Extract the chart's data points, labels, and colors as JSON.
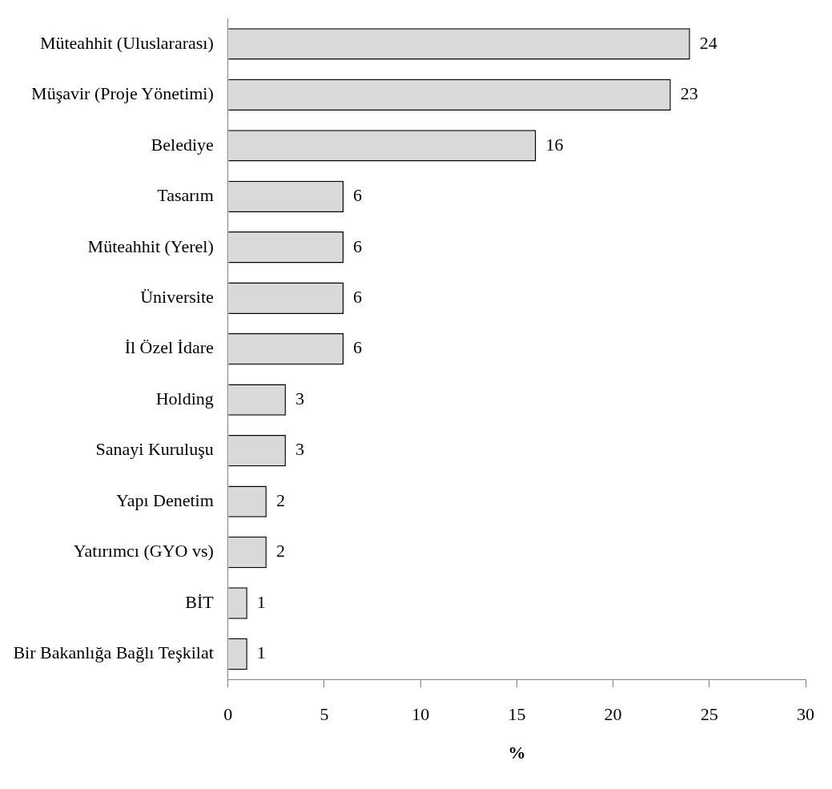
{
  "chart_data": {
    "type": "bar",
    "orientation": "horizontal",
    "xlabel": "%",
    "categories": [
      "Müteahhit (Uluslararası)",
      "Müşavir (Proje Yönetimi)",
      "Belediye",
      "Tasarım",
      "Müteahhit (Yerel)",
      "Üniversite",
      "İl Özel İdare",
      "Holding",
      "Sanayi Kuruluşu",
      "Yapı Denetim",
      "Yatırımcı (GYO vs)",
      "BİT",
      "Bir Bakanlığa Bağlı Teşkilat"
    ],
    "values": [
      24,
      23,
      16,
      6,
      6,
      6,
      6,
      3,
      3,
      2,
      2,
      1,
      1
    ],
    "color": "#d9d9d9",
    "xlim": [
      0,
      30
    ],
    "xticks": [
      0,
      5,
      10,
      15,
      20,
      25,
      30
    ],
    "data_labels": true,
    "grid": false
  }
}
